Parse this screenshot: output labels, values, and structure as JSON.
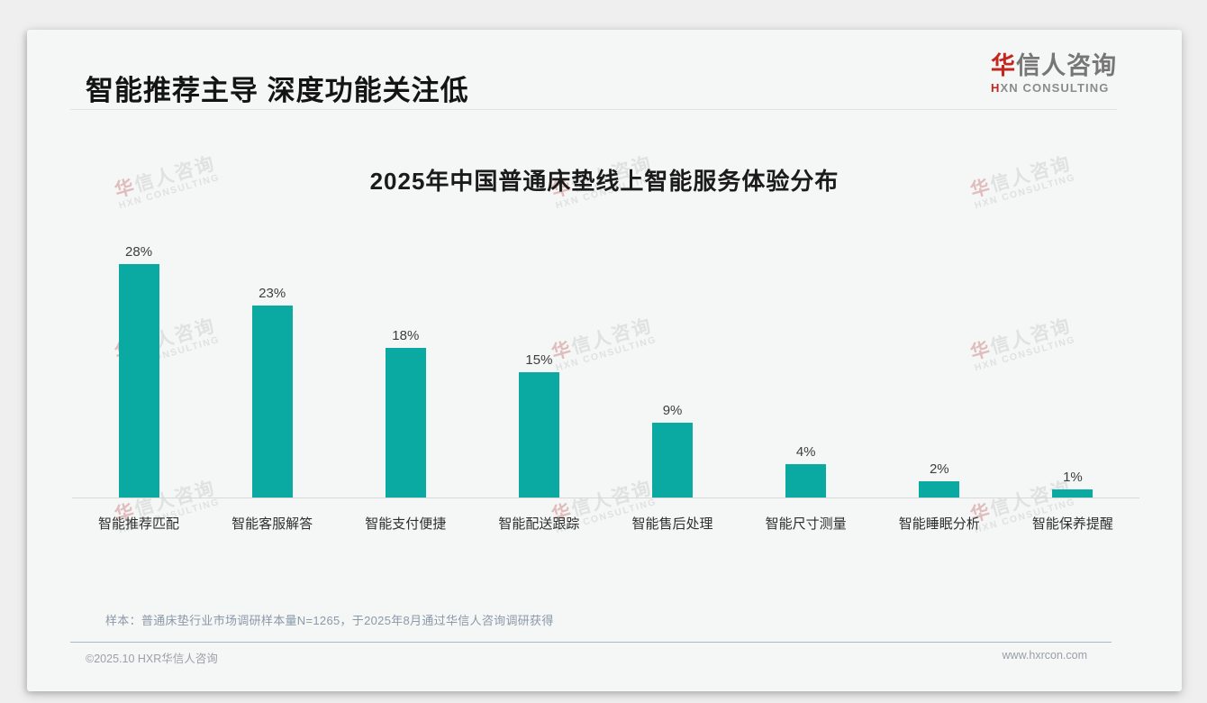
{
  "page": {
    "title": "智能推荐主导 深度功能关注低",
    "logo": {
      "cn_accent": "华",
      "cn_rest": "信人咨询",
      "en_accent": "H",
      "en_rest": "XN CONSULTING"
    },
    "watermark": {
      "line1_accent": "华",
      "line1_rest": "信人咨询",
      "line2": "HXN CONSULTING"
    },
    "footnote": "样本：普通床垫行业市场调研样本量N=1265，于2025年8月通过华信人咨询调研获得",
    "footer": {
      "copyright": "©2025.10 HXR华信人咨询",
      "website": "www.hxrcon.com"
    }
  },
  "colors": {
    "bar_teal": "#0aa9a1",
    "brand_red": "#c4251d"
  },
  "chart_data": {
    "type": "bar",
    "title": "2025年中国普通床垫线上智能服务体验分布",
    "categories": [
      "智能推荐匹配",
      "智能客服解答",
      "智能支付便捷",
      "智能配送跟踪",
      "智能售后处理",
      "智能尺寸测量",
      "智能睡眠分析",
      "智能保养提醒"
    ],
    "values": [
      28,
      23,
      18,
      15,
      9,
      4,
      2,
      1
    ],
    "unit": "%",
    "value_labels_position": "above bars",
    "bar_color": "#0aa9a1",
    "xlabel": "",
    "ylabel": "",
    "ylim": [
      0,
      30
    ],
    "grid": false,
    "legend": null,
    "y_axis_visible": false,
    "x_axis_line": true
  }
}
